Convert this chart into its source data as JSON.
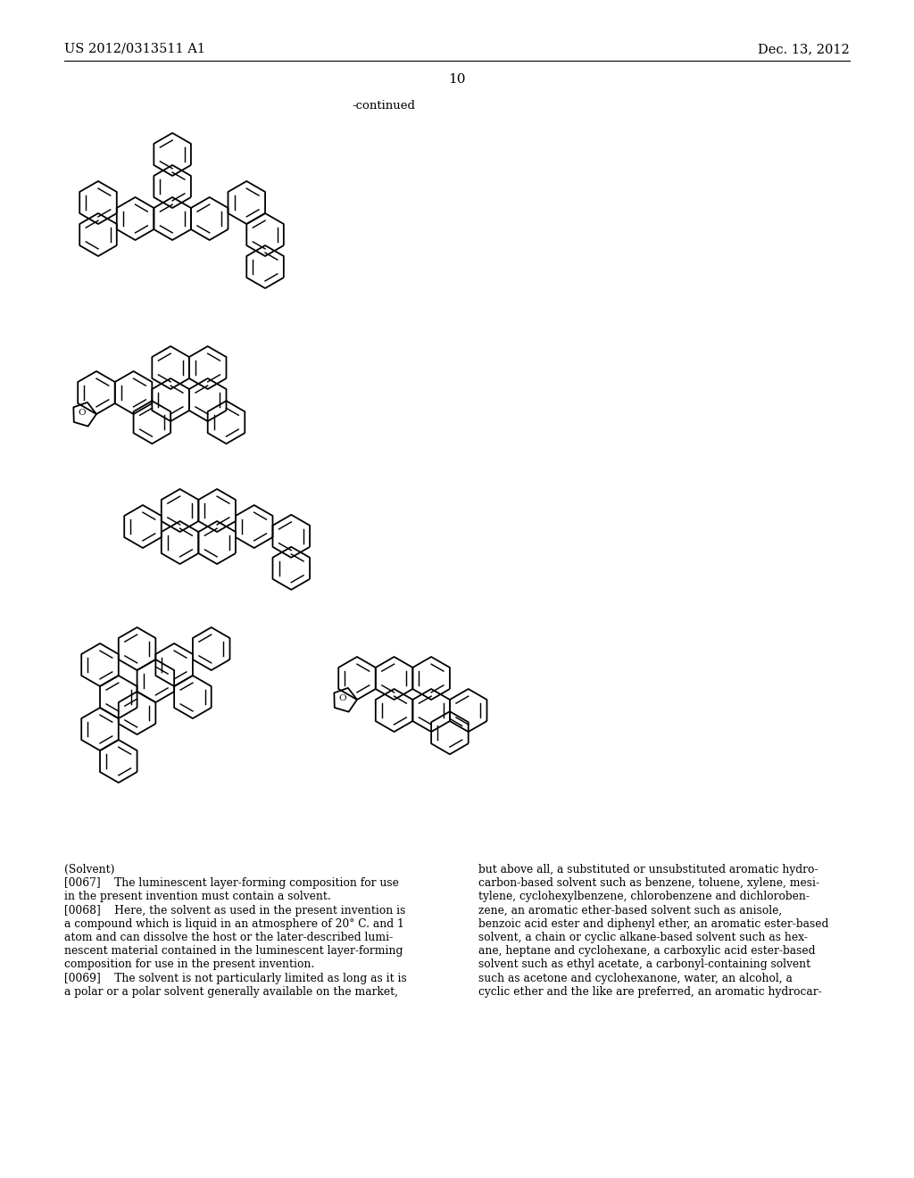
{
  "header_left": "US 2012/0313511 A1",
  "header_right": "Dec. 13, 2012",
  "page_number": "10",
  "continued_label": "-continued",
  "background_color": "#ffffff",
  "text_color": "#000000",
  "left_col_text": [
    {
      "tag": "(Solvent)",
      "indent": 0,
      "bold": false
    },
    {
      "tag": "[0067]",
      "text": "   The luminescent layer-forming composition for use in the present invention must contain a solvent.",
      "indent": 0,
      "bold": true
    },
    {
      "tag": "[0068]",
      "text": "   Here, the solvent as used in the present invention is a compound which is liquid in an atmosphere of 20° C. and 1 atom and can dissolve the host or the later-described luminescent material contained in the luminescent layer-forming composition for use in the present invention.",
      "indent": 0,
      "bold": true
    },
    {
      "tag": "[0069]",
      "text": "   The solvent is not particularly limited as long as it is a polar or a polar solvent generally available on the market,",
      "indent": 0,
      "bold": true
    }
  ],
  "right_col_text": "but above all, a substituted or unsubstituted aromatic hydrocarbon-based solvent such as benzene, toluene, xylene, mesitylene, cyclohexylbenzene, chlorobenzene and dichlorobenzene, an aromatic ether-based solvent such as anisole, benzoic acid ester and diphenyl ether, an aromatic ester-based solvent, a chain or cyclic alkane-based solvent such as hexane, heptane and cyclohexane, a carboxylic acid ester-based solvent such as ethyl acetate, a carbonyl-containing solvent such as acetone and cyclohexanone, water, an alcohol, a cyclic ether and the like are preferred, an aromatic hydrocar-"
}
